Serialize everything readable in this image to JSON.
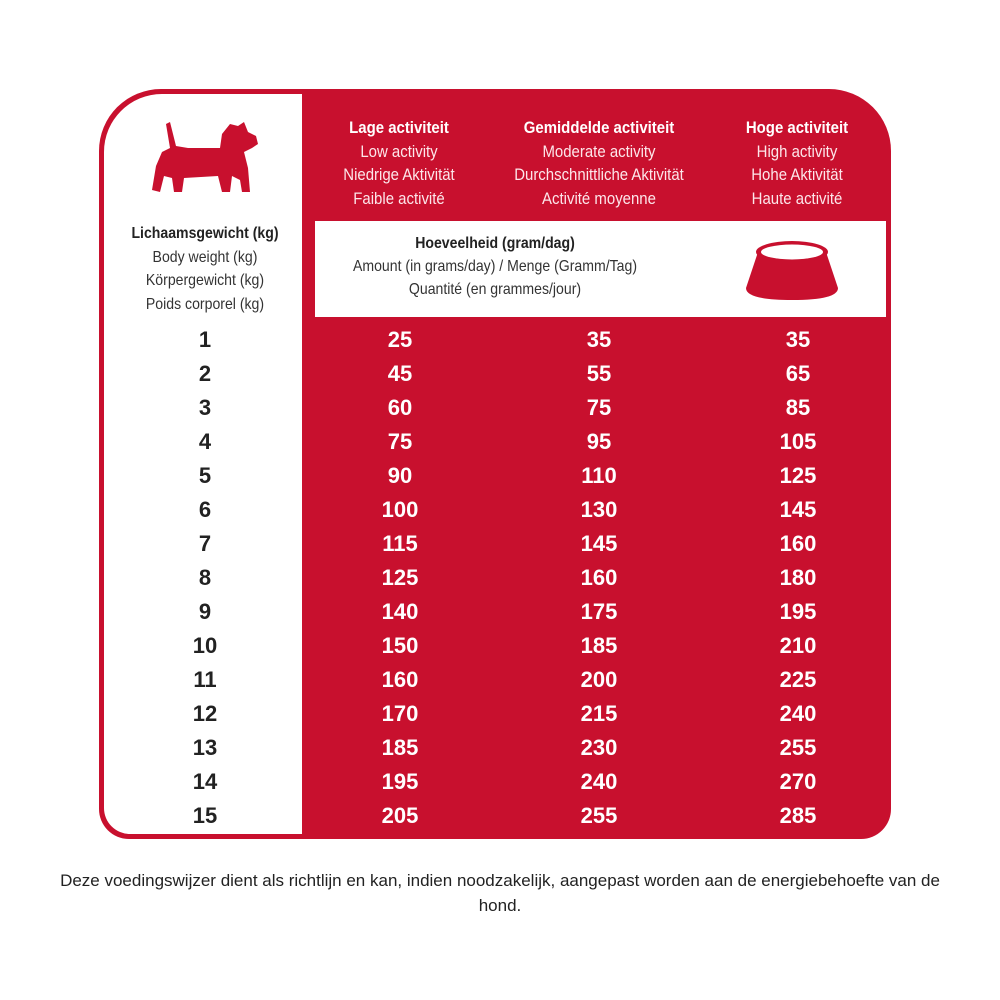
{
  "colors": {
    "brand_red": "#c8102e"
  },
  "weight_header": {
    "nl": "Lichaamsgewicht (kg)",
    "en": "Body weight (kg)",
    "de": "Körpergewicht (kg)",
    "fr": "Poids corporel (kg)"
  },
  "columns": [
    {
      "nl": "Lage activiteit",
      "en": "Low activity",
      "de": "Niedrige Aktivität",
      "fr": "Faible activité"
    },
    {
      "nl": "Gemiddelde activiteit",
      "en": "Moderate activity",
      "de": "Durchschnittliche Aktivität",
      "fr": "Activité moyenne"
    },
    {
      "nl": "Hoge activiteit",
      "en": "High activity",
      "de": "Hohe Aktivität",
      "fr": "Haute activité"
    }
  ],
  "amount_header": {
    "nl": "Hoeveelheid (gram/dag)",
    "en_de": "Amount (in grams/day) / Menge (Gramm/Tag)",
    "fr": "Quantité (en grammes/jour)"
  },
  "icons": {
    "dog": "dog-silhouette-icon",
    "bowl": "food-bowl-icon"
  },
  "rows": [
    [
      "1",
      "25",
      "35",
      "35"
    ],
    [
      "2",
      "45",
      "55",
      "65"
    ],
    [
      "3",
      "60",
      "75",
      "85"
    ],
    [
      "4",
      "75",
      "95",
      "105"
    ],
    [
      "5",
      "90",
      "110",
      "125"
    ],
    [
      "6",
      "100",
      "130",
      "145"
    ],
    [
      "7",
      "115",
      "145",
      "160"
    ],
    [
      "8",
      "125",
      "160",
      "180"
    ],
    [
      "9",
      "140",
      "175",
      "195"
    ],
    [
      "10",
      "150",
      "185",
      "210"
    ],
    [
      "11",
      "160",
      "200",
      "225"
    ],
    [
      "12",
      "170",
      "215",
      "240"
    ],
    [
      "13",
      "185",
      "230",
      "255"
    ],
    [
      "14",
      "195",
      "240",
      "270"
    ],
    [
      "15",
      "205",
      "255",
      "285"
    ]
  ],
  "footnote": "Deze voedingswijzer dient als richtlijn en kan, indien noodzakelijk, aangepast worden aan de energiebehoefte van de hond."
}
